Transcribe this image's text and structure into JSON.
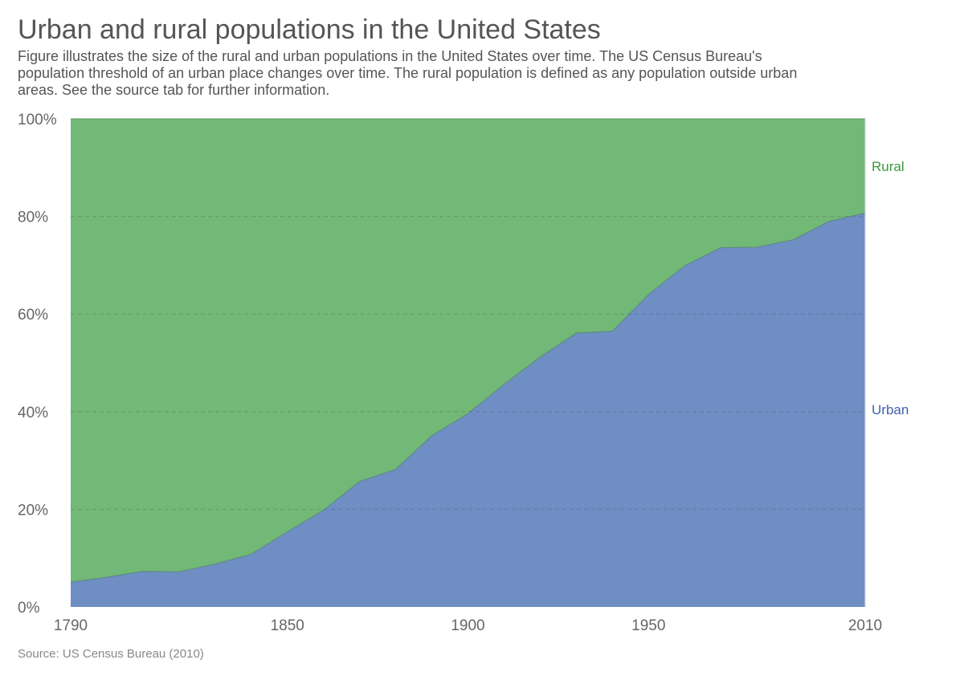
{
  "chart_data": {
    "type": "area",
    "stacked": "percent",
    "title": "Urban and rural populations in the United States",
    "subtitle": "Figure illustrates the size of the rural and urban populations in the United States over time. The US Census Bureau's population threshold of an urban place changes over time. The rural population is defined as any population outside urban areas. See the source tab for further information.",
    "source": "Source: US Census Bureau (2010)",
    "xlabel": "",
    "ylabel": "",
    "x": [
      1790,
      1800,
      1810,
      1820,
      1830,
      1840,
      1850,
      1860,
      1870,
      1880,
      1890,
      1900,
      1910,
      1920,
      1930,
      1940,
      1950,
      1960,
      1970,
      1980,
      1990,
      2000,
      2010
    ],
    "series": [
      {
        "name": "Urban",
        "color": "#6e8ec4",
        "label_color": "#3f63ad",
        "values": [
          5.1,
          6.1,
          7.3,
          7.2,
          8.8,
          10.8,
          15.4,
          19.8,
          25.7,
          28.2,
          35.1,
          39.6,
          45.6,
          51.2,
          56.1,
          56.5,
          64.0,
          69.9,
          73.6,
          73.7,
          75.2,
          79.0,
          80.7
        ]
      },
      {
        "name": "Rural",
        "color": "#72b877",
        "label_color": "#3a9a3f",
        "values": [
          94.9,
          93.9,
          92.7,
          92.8,
          91.2,
          89.2,
          84.6,
          80.2,
          74.3,
          71.8,
          64.9,
          60.4,
          54.4,
          48.8,
          43.9,
          43.5,
          36.0,
          30.1,
          26.4,
          26.3,
          24.8,
          21.0,
          19.3
        ]
      }
    ],
    "xlim": [
      1790,
      2010
    ],
    "ylim": [
      0,
      100
    ],
    "x_ticks": [
      1790,
      1850,
      1900,
      1950,
      2010
    ],
    "y_ticks": [
      0,
      20,
      40,
      60,
      80,
      100
    ],
    "y_tick_labels": [
      "0%",
      "20%",
      "40%",
      "60%",
      "80%",
      "100%"
    ],
    "grid": true,
    "legend": "inline-right"
  }
}
